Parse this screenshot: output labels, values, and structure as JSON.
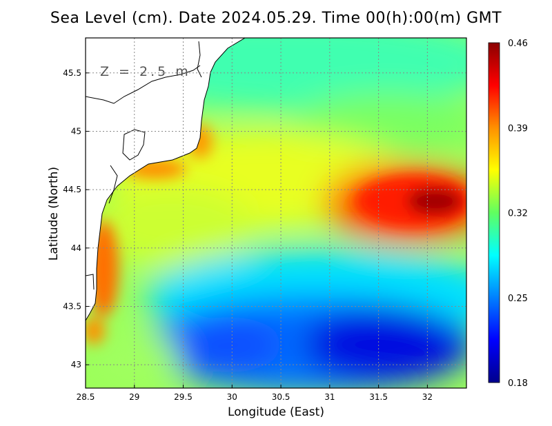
{
  "title": "Sea Level (cm). Date 2024.05.29. Time 00(h):00(m) GMT",
  "axes": {
    "xlabel": "Longitude (East)",
    "ylabel": "Latitude (North)",
    "xlim": [
      28.5,
      32.4
    ],
    "ylim": [
      42.8,
      45.8
    ],
    "xticks": [
      "28.5",
      "29",
      "29.5",
      "30",
      "30.5",
      "31",
      "31.5",
      "32"
    ],
    "yticks": [
      "43",
      "43.5",
      "44",
      "44.5",
      "45",
      "45.5"
    ],
    "grid": true
  },
  "depth_label": "Z = 2.5 m",
  "colorbar": {
    "min": 0.18,
    "max": 0.46,
    "ticks": [
      "0.46",
      "0.39",
      "0.32",
      "0.25",
      "0.18"
    ],
    "colors": [
      "#00008b",
      "#0000ff",
      "#0080ff",
      "#00ffff",
      "#60ff60",
      "#ffff00",
      "#ff9000",
      "#ff0000",
      "#8b0000"
    ]
  },
  "chart_data": {
    "type": "heatmap",
    "variable": "Sea Level (cm)",
    "features": [
      {
        "lon": 31.9,
        "lat": 44.4,
        "value": 0.46
      },
      {
        "lon": 31.2,
        "lat": 44.4,
        "value": 0.41
      },
      {
        "lon": 29.0,
        "lat": 44.6,
        "value": 0.39
      },
      {
        "lon": 28.7,
        "lat": 43.8,
        "value": 0.4
      },
      {
        "lon": 29.8,
        "lat": 45.1,
        "value": 0.38
      },
      {
        "lon": 31.9,
        "lat": 43.1,
        "value": 0.19
      },
      {
        "lon": 30.2,
        "lat": 43.2,
        "value": 0.22
      },
      {
        "lon": 30.8,
        "lat": 43.6,
        "value": 0.24
      },
      {
        "lon": 30.5,
        "lat": 45.6,
        "value": 0.3
      },
      {
        "lon": 30.3,
        "lat": 44.6,
        "value": 0.35
      },
      {
        "lon": 29.3,
        "lat": 44.0,
        "value": 0.34
      }
    ]
  }
}
